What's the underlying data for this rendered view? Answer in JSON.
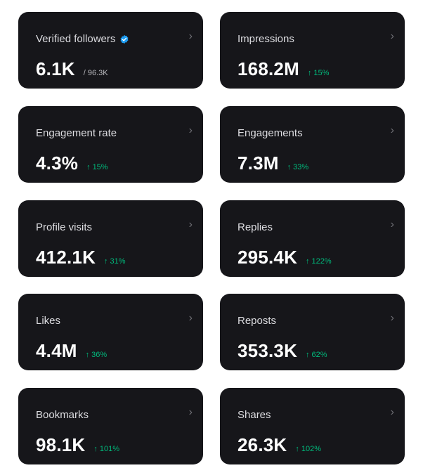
{
  "cards": [
    {
      "label": "Verified followers",
      "value": "6.1K",
      "sub": "/ 96.3K",
      "verified": true
    },
    {
      "label": "Impressions",
      "value": "168.2M",
      "change": "15%"
    },
    {
      "label": "Engagement rate",
      "value": "4.3%",
      "change": "15%"
    },
    {
      "label": "Engagements",
      "value": "7.3M",
      "change": "33%"
    },
    {
      "label": "Profile visits",
      "value": "412.1K",
      "change": "31%"
    },
    {
      "label": "Replies",
      "value": "295.4K",
      "change": "122%"
    },
    {
      "label": "Likes",
      "value": "4.4M",
      "change": "36%"
    },
    {
      "label": "Reposts",
      "value": "353.3K",
      "change": "62%"
    },
    {
      "label": "Bookmarks",
      "value": "98.1K",
      "change": "101%"
    },
    {
      "label": "Shares",
      "value": "26.3K",
      "change": "102%"
    }
  ],
  "icons": {
    "verified": "verified-badge-icon",
    "chevron": "chevron-right-icon",
    "up_arrow": "arrow-up-icon"
  },
  "colors": {
    "card_bg": "#16161a",
    "positive": "#00ba7c",
    "verified": "#1d9bf0",
    "chevron": "#6e6e74"
  },
  "glyphs": {
    "chevron": "›",
    "up_arrow": "↑"
  }
}
